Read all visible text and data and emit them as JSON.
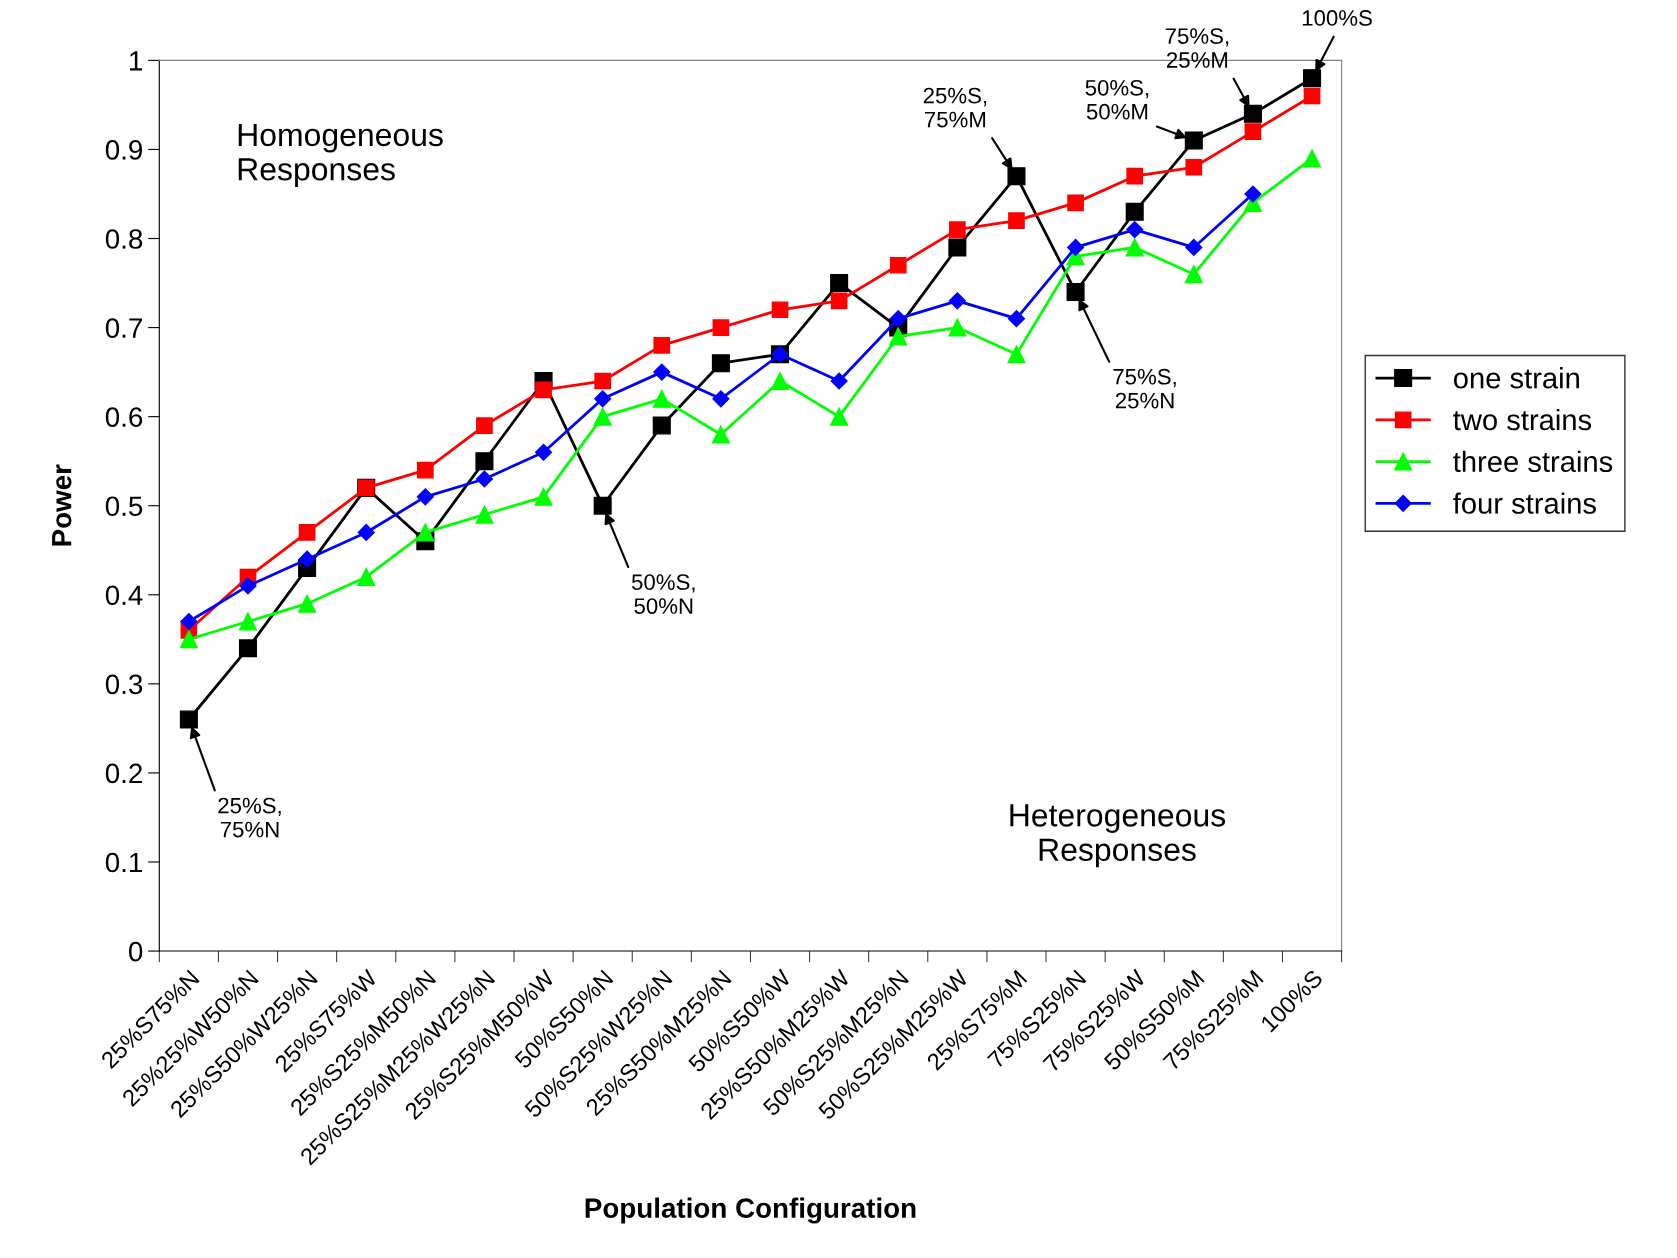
{
  "chart_data": {
    "type": "line",
    "xlabel": "Population Configuration",
    "ylabel": "Power",
    "categories": [
      "25%S75%N",
      "25%25%W50%N",
      "25%S50%W25%N",
      "25%S75%W",
      "25%S25%M50%N",
      "25%S25%M25%W25%N",
      "25%S25%M50%W",
      "50%S50%N",
      "50%S25%W25%N",
      "25%S50%M25%N",
      "50%S50%W",
      "25%S50%M25%W",
      "50%S25%M25%N",
      "50%S25%M25%W",
      "25%S75%M",
      "75%S25%N",
      "75%S25%W",
      "50%S50%M",
      "75%S25%M",
      "100%S"
    ],
    "series": [
      {
        "name": "one strain",
        "color": "#000000",
        "marker": "square",
        "values": [
          0.26,
          0.34,
          0.43,
          0.52,
          0.46,
          0.55,
          0.64,
          0.5,
          0.59,
          0.66,
          0.67,
          0.75,
          0.7,
          0.79,
          0.87,
          0.74,
          0.83,
          0.91,
          0.94,
          0.98
        ]
      },
      {
        "name": "two strains",
        "color": "#ff0000",
        "marker": "square",
        "values": [
          0.36,
          0.42,
          0.47,
          0.52,
          0.54,
          0.59,
          0.63,
          0.64,
          0.68,
          0.7,
          0.72,
          0.73,
          0.77,
          0.81,
          0.82,
          0.84,
          0.87,
          0.88,
          0.92,
          0.96
        ]
      },
      {
        "name": "three strains",
        "color": "#00ff00",
        "marker": "triangle",
        "values": [
          0.35,
          0.37,
          0.39,
          0.42,
          0.47,
          0.49,
          0.51,
          0.6,
          0.62,
          0.58,
          0.64,
          0.6,
          0.69,
          0.7,
          0.67,
          0.78,
          0.79,
          0.76,
          0.84,
          0.89
        ]
      },
      {
        "name": "four strains",
        "color": "#0000ff",
        "marker": "diamond",
        "values": [
          0.37,
          0.41,
          0.44,
          0.47,
          0.51,
          0.53,
          0.56,
          0.62,
          0.65,
          0.62,
          0.67,
          0.64,
          0.71,
          0.73,
          0.71,
          0.79,
          0.81,
          0.79,
          0.85,
          null
        ]
      }
    ],
    "ylim": [
      0,
      1
    ],
    "yticks": [
      0,
      0.1,
      0.2,
      0.3,
      0.4,
      0.5,
      0.6,
      0.7,
      0.8,
      0.9,
      1
    ],
    "grid": false,
    "legend": "right",
    "line_style": "solid",
    "annotations": [
      "Homogeneous\nResponses",
      "Heterogeneous\nResponses",
      {
        "text": "25%S,\n75%N",
        "x": "25%S75%N",
        "y": 0.26
      },
      {
        "text": "50%S,\n50%N",
        "x": "50%S50%N",
        "y": 0.5
      },
      {
        "text": "25%S,\n75%M",
        "x": "25%S75%M",
        "y": 0.87
      },
      {
        "text": "75%S,\n25%N",
        "x": "75%S25%N",
        "y": 0.74
      },
      {
        "text": "50%S,\n50%M",
        "x": "50%S50%M",
        "y": 0.91
      },
      {
        "text": "75%S,\n25%M",
        "x": "75%S25%M",
        "y": 0.94
      },
      {
        "text": "100%S",
        "x": "100%S",
        "y": 0.98
      }
    ]
  }
}
